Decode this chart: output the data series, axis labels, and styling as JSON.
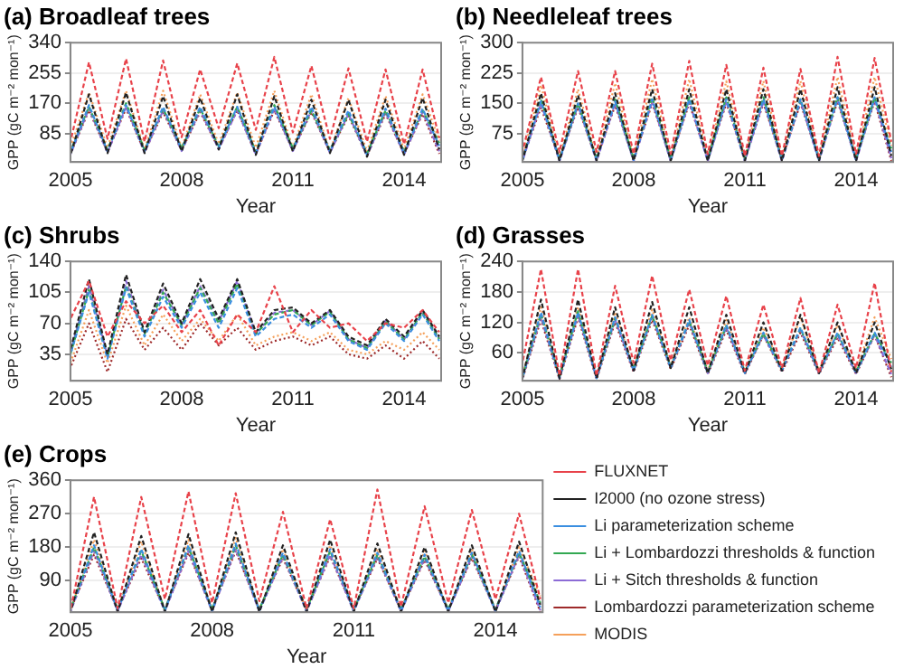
{
  "chart_data": [
    {
      "type": "line",
      "title": "(a) Broadleaf trees",
      "xlabel": "Year",
      "ylabel": "GPP (gC m⁻² mon⁻¹)",
      "xlim": [
        2005,
        2015
      ],
      "xticks": [
        2005,
        2008,
        2011,
        2014
      ],
      "ylim": [
        5,
        340
      ],
      "yticks": [
        85,
        170,
        255,
        340
      ],
      "grid": "y",
      "x": [
        2005,
        2005.5,
        2006,
        2006.5,
        2007,
        2007.5,
        2008,
        2008.5,
        2009,
        2009.5,
        2010,
        2010.5,
        2011,
        2011.5,
        2012,
        2012.5,
        2013,
        2013.5,
        2014,
        2014.5,
        2014.95
      ],
      "series": [
        {
          "color": "#e8424a",
          "line_style": "dashed",
          "values": [
            62,
            285,
            70,
            295,
            62,
            290,
            75,
            265,
            100,
            282,
            95,
            300,
            88,
            275,
            70,
            268,
            62,
            265,
            55,
            265,
            72
          ]
        },
        {
          "color": "#222222",
          "line_style": "dashed",
          "values": [
            25,
            195,
            30,
            200,
            30,
            190,
            35,
            185,
            40,
            195,
            25,
            190,
            35,
            180,
            30,
            180,
            20,
            180,
            25,
            185,
            40
          ]
        },
        {
          "color": "#3a8ee0",
          "line_style": "dashed",
          "values": [
            30,
            165,
            35,
            165,
            35,
            160,
            40,
            160,
            45,
            160,
            30,
            160,
            40,
            160,
            35,
            150,
            25,
            155,
            30,
            155,
            50
          ]
        },
        {
          "color": "#33a852",
          "line_style": "dashed",
          "values": [
            34,
            160,
            39,
            170,
            39,
            155,
            44,
            155,
            49,
            160,
            34,
            165,
            44,
            150,
            39,
            140,
            29,
            150,
            34,
            150,
            58
          ]
        },
        {
          "color": "#8c6bd6",
          "line_style": "dashed",
          "values": [
            26,
            155,
            31,
            160,
            31,
            150,
            36,
            150,
            41,
            150,
            26,
            155,
            36,
            150,
            31,
            140,
            21,
            145,
            26,
            145,
            35
          ]
        },
        {
          "color": "#9e2a2a",
          "line_style": "dotted",
          "values": [
            28,
            150,
            33,
            155,
            33,
            145,
            38,
            145,
            43,
            150,
            28,
            150,
            38,
            145,
            33,
            135,
            23,
            140,
            28,
            140,
            28
          ]
        },
        {
          "color": "#f5a05a",
          "line_style": "dotted",
          "values": [
            45,
            200,
            45,
            205,
            40,
            205,
            45,
            195,
            55,
            200,
            45,
            205,
            45,
            195,
            35,
            185,
            35,
            190,
            40,
            195,
            65
          ]
        }
      ]
    },
    {
      "type": "line",
      "title": "(b) Needleleaf trees",
      "xlabel": "Year",
      "ylabel": "GPP (gC m⁻² mon⁻¹)",
      "xlim": [
        2005,
        2015
      ],
      "xticks": [
        2005,
        2008,
        2011,
        2014
      ],
      "ylim": [
        5,
        300
      ],
      "yticks": [
        75,
        150,
        225,
        300
      ],
      "grid": "y",
      "x": [
        2005,
        2005.5,
        2006,
        2006.5,
        2007,
        2007.5,
        2008,
        2008.5,
        2009,
        2009.5,
        2010,
        2010.5,
        2011,
        2011.5,
        2012,
        2012.5,
        2013,
        2013.5,
        2014,
        2014.5,
        2014.95
      ],
      "series": [
        {
          "color": "#e8424a",
          "line_style": "dashed",
          "values": [
            30,
            215,
            30,
            230,
            30,
            230,
            25,
            248,
            25,
            255,
            25,
            245,
            20,
            238,
            20,
            235,
            20,
            265,
            25,
            262,
            55
          ]
        },
        {
          "color": "#222222",
          "line_style": "dashed",
          "values": [
            8,
            175,
            8,
            170,
            8,
            175,
            8,
            185,
            8,
            185,
            8,
            185,
            8,
            185,
            8,
            185,
            8,
            190,
            8,
            190,
            20
          ]
        },
        {
          "color": "#3a8ee0",
          "line_style": "dashed",
          "values": [
            10,
            155,
            10,
            150,
            10,
            155,
            10,
            160,
            10,
            160,
            10,
            160,
            10,
            160,
            10,
            160,
            10,
            165,
            10,
            165,
            30
          ]
        },
        {
          "color": "#33a852",
          "line_style": "dashed",
          "values": [
            13,
            160,
            13,
            150,
            13,
            160,
            13,
            165,
            13,
            165,
            13,
            165,
            13,
            165,
            13,
            160,
            13,
            165,
            13,
            165,
            38
          ]
        },
        {
          "color": "#8c6bd6",
          "line_style": "dashed",
          "values": [
            7,
            150,
            7,
            145,
            7,
            150,
            7,
            155,
            7,
            155,
            7,
            155,
            7,
            155,
            7,
            155,
            7,
            160,
            7,
            160,
            14
          ]
        },
        {
          "color": "#9e2a2a",
          "line_style": "dotted",
          "values": [
            12,
            140,
            12,
            140,
            12,
            145,
            12,
            150,
            12,
            150,
            12,
            150,
            12,
            150,
            12,
            150,
            12,
            155,
            12,
            155,
            8
          ]
        },
        {
          "color": "#f5a05a",
          "line_style": "dotted",
          "values": [
            15,
            195,
            15,
            185,
            15,
            200,
            15,
            210,
            15,
            210,
            15,
            205,
            15,
            205,
            15,
            205,
            15,
            215,
            15,
            215,
            45
          ]
        }
      ]
    },
    {
      "type": "line",
      "title": "(c) Shrubs",
      "xlabel": "Year",
      "ylabel": "GPP (gC m⁻² mon⁻¹)",
      "xlim": [
        2005,
        2015
      ],
      "xticks": [
        2005,
        2008,
        2011,
        2014
      ],
      "ylim": [
        5,
        140
      ],
      "yticks": [
        35,
        70,
        105,
        140
      ],
      "grid": "y",
      "x": [
        2005,
        2005.5,
        2006,
        2006.5,
        2007,
        2007.5,
        2008,
        2008.5,
        2009,
        2009.5,
        2010,
        2010.5,
        2011,
        2011.5,
        2012,
        2012.5,
        2013,
        2013.5,
        2014,
        2014.5,
        2014.95
      ],
      "series": [
        {
          "color": "#e8424a",
          "line_style": "dashed",
          "values": [
            75,
            118,
            55,
            95,
            70,
            90,
            60,
            85,
            45,
            80,
            60,
            112,
            60,
            85,
            65,
            70,
            50,
            70,
            65,
            85,
            60
          ]
        },
        {
          "color": "#222222",
          "line_style": "dashed",
          "values": [
            40,
            120,
            35,
            125,
            60,
            115,
            70,
            120,
            75,
            120,
            60,
            85,
            88,
            70,
            85,
            55,
            45,
            75,
            55,
            85,
            55
          ]
        },
        {
          "color": "#3a8ee0",
          "line_style": "dashed",
          "values": [
            35,
            105,
            30,
            110,
            55,
            100,
            65,
            105,
            65,
            110,
            55,
            75,
            80,
            65,
            80,
            50,
            40,
            70,
            50,
            80,
            50
          ]
        },
        {
          "color": "#33a852",
          "line_style": "dashed",
          "values": [
            35,
            108,
            32,
            112,
            58,
            105,
            68,
            110,
            70,
            115,
            58,
            80,
            85,
            68,
            83,
            52,
            42,
            72,
            52,
            82,
            52
          ]
        },
        {
          "color": "#8c6bd6",
          "line_style": "dashed",
          "values": [
            38,
            112,
            33,
            118,
            58,
            108,
            68,
            112,
            72,
            118,
            58,
            82,
            85,
            68,
            84,
            52,
            42,
            73,
            52,
            84,
            53
          ]
        },
        {
          "color": "#9e2a2a",
          "line_style": "dotted",
          "values": [
            20,
            70,
            15,
            75,
            40,
            65,
            40,
            70,
            45,
            65,
            40,
            50,
            55,
            45,
            55,
            35,
            30,
            45,
            30,
            50,
            30
          ]
        },
        {
          "color": "#f5a05a",
          "line_style": "dotted",
          "values": [
            25,
            85,
            25,
            90,
            45,
            80,
            50,
            75,
            50,
            80,
            45,
            55,
            60,
            50,
            60,
            40,
            35,
            50,
            40,
            60,
            40
          ]
        }
      ]
    },
    {
      "type": "line",
      "title": "(d) Grasses",
      "xlabel": "Year",
      "ylabel": "GPP (gC m⁻² mon⁻¹)",
      "xlim": [
        2005,
        2015
      ],
      "xticks": [
        2005,
        2008,
        2011,
        2014
      ],
      "ylim": [
        5,
        240
      ],
      "yticks": [
        60,
        120,
        180,
        240
      ],
      "grid": "y",
      "x": [
        2005,
        2005.5,
        2006,
        2006.5,
        2007,
        2007.5,
        2008,
        2008.5,
        2009,
        2009.5,
        2010,
        2010.5,
        2011,
        2011.5,
        2012,
        2012.5,
        2013,
        2013.5,
        2014,
        2014.5,
        2014.95
      ],
      "series": [
        {
          "color": "#e8424a",
          "line_style": "dashed",
          "values": [
            40,
            225,
            15,
            225,
            15,
            192,
            40,
            212,
            45,
            185,
            35,
            172,
            25,
            155,
            30,
            168,
            20,
            155,
            30,
            198,
            22
          ]
        },
        {
          "color": "#222222",
          "line_style": "dashed",
          "values": [
            10,
            165,
            10,
            165,
            10,
            150,
            25,
            160,
            30,
            150,
            20,
            135,
            20,
            120,
            25,
            135,
            20,
            120,
            20,
            120,
            28
          ]
        },
        {
          "color": "#3a8ee0",
          "line_style": "dashed",
          "values": [
            10,
            140,
            10,
            140,
            10,
            130,
            25,
            135,
            30,
            125,
            20,
            115,
            20,
            100,
            25,
            110,
            20,
            100,
            20,
            100,
            32
          ]
        },
        {
          "color": "#33a852",
          "line_style": "dashed",
          "values": [
            13,
            137,
            13,
            142,
            13,
            128,
            28,
            133,
            33,
            123,
            23,
            113,
            23,
            98,
            28,
            108,
            23,
            98,
            23,
            98,
            40
          ]
        },
        {
          "color": "#8c6bd6",
          "line_style": "dashed",
          "values": [
            10,
            130,
            10,
            135,
            10,
            125,
            25,
            130,
            30,
            120,
            20,
            110,
            20,
            95,
            25,
            105,
            20,
            95,
            20,
            95,
            18
          ]
        },
        {
          "color": "#9e2a2a",
          "line_style": "dotted",
          "values": [
            8,
            125,
            8,
            130,
            8,
            120,
            22,
            125,
            28,
            115,
            18,
            105,
            18,
            95,
            22,
            100,
            18,
            90,
            18,
            95,
            12
          ]
        },
        {
          "color": "#f5a05a",
          "line_style": "dotted",
          "values": [
            15,
            150,
            15,
            150,
            15,
            140,
            30,
            145,
            35,
            130,
            25,
            125,
            25,
            110,
            30,
            130,
            25,
            115,
            25,
            130,
            48
          ]
        }
      ]
    },
    {
      "type": "line",
      "title": "(e) Crops",
      "xlabel": "Year",
      "ylabel": "GPP (gC m⁻² mon⁻¹)",
      "xlim": [
        2005,
        2015
      ],
      "xticks": [
        2005,
        2008,
        2011,
        2014
      ],
      "ylim": [
        5,
        360
      ],
      "yticks": [
        90,
        180,
        270,
        360
      ],
      "grid": "y",
      "legend": "right",
      "x": [
        2005,
        2005.5,
        2006,
        2006.5,
        2007,
        2007.5,
        2008,
        2008.5,
        2009,
        2009.5,
        2010,
        2010.5,
        2011,
        2011.5,
        2012,
        2012.5,
        2013,
        2013.5,
        2014,
        2014.5,
        2014.95
      ],
      "series": [
        {
          "name": "FLUXNET",
          "color": "#e8424a",
          "line_style": "dashed",
          "values": [
            10,
            315,
            15,
            315,
            40,
            330,
            30,
            325,
            35,
            275,
            15,
            255,
            15,
            335,
            20,
            290,
            30,
            280,
            40,
            270,
            40
          ]
        },
        {
          "name": "I2000 (no ozone stress)",
          "color": "#222222",
          "line_style": "dashed",
          "values": [
            6,
            220,
            6,
            210,
            6,
            215,
            6,
            220,
            6,
            185,
            6,
            200,
            6,
            190,
            6,
            180,
            6,
            185,
            6,
            195,
            25
          ]
        },
        {
          "name": "Li parameterization scheme",
          "color": "#3a8ee0",
          "line_style": "dashed",
          "values": [
            9,
            185,
            9,
            175,
            9,
            185,
            9,
            190,
            9,
            165,
            9,
            175,
            9,
            165,
            9,
            160,
            9,
            165,
            9,
            170,
            18
          ]
        },
        {
          "name": "Li + Lombardozzi thresholds & function",
          "color": "#33a852",
          "line_style": "dashed",
          "values": [
            13,
            180,
            13,
            170,
            13,
            180,
            13,
            185,
            13,
            160,
            13,
            170,
            13,
            160,
            13,
            155,
            13,
            160,
            13,
            165,
            30
          ]
        },
        {
          "name": "Li + Sitch thresholds & function",
          "color": "#8c6bd6",
          "line_style": "dashed",
          "values": [
            7,
            170,
            7,
            160,
            7,
            170,
            7,
            175,
            7,
            155,
            7,
            160,
            7,
            155,
            7,
            150,
            7,
            155,
            7,
            160,
            10
          ]
        },
        {
          "name": "Lombardozzi parameterization scheme",
          "color": "#9e2a2a",
          "line_style": "dotted",
          "values": [
            11,
            160,
            11,
            150,
            11,
            165,
            11,
            170,
            11,
            150,
            11,
            155,
            11,
            150,
            11,
            145,
            11,
            150,
            11,
            155,
            6
          ]
        },
        {
          "name": "MODIS",
          "color": "#f5a05a",
          "line_style": "dotted",
          "values": [
            10,
            200,
            10,
            195,
            10,
            200,
            10,
            205,
            10,
            175,
            10,
            185,
            10,
            175,
            10,
            170,
            10,
            175,
            10,
            180,
            48
          ]
        }
      ]
    }
  ]
}
